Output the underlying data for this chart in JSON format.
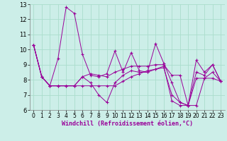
{
  "xlabel": "Windchill (Refroidissement éolien,°C)",
  "bg_color": "#cceee8",
  "line_color": "#990099",
  "grid_color": "#aaddcc",
  "xlim": [
    -0.5,
    23.5
  ],
  "ylim": [
    6,
    13
  ],
  "yticks": [
    6,
    7,
    8,
    9,
    10,
    11,
    12,
    13
  ],
  "xticks": [
    0,
    1,
    2,
    3,
    4,
    5,
    6,
    7,
    8,
    9,
    10,
    11,
    12,
    13,
    14,
    15,
    16,
    17,
    18,
    19,
    20,
    21,
    22,
    23
  ],
  "series": [
    [
      10.3,
      8.2,
      7.6,
      9.4,
      12.8,
      12.4,
      9.7,
      8.3,
      8.2,
      8.4,
      9.9,
      8.5,
      9.8,
      8.6,
      8.5,
      10.4,
      9.1,
      7.8,
      6.5,
      6.3,
      9.3,
      8.5,
      9.0,
      7.9
    ],
    [
      10.3,
      8.2,
      7.6,
      7.6,
      7.6,
      7.6,
      7.6,
      7.6,
      7.6,
      7.6,
      7.6,
      7.9,
      8.2,
      8.4,
      8.6,
      8.7,
      8.8,
      7.0,
      6.5,
      6.3,
      8.1,
      8.1,
      8.1,
      7.9
    ],
    [
      10.3,
      8.2,
      7.6,
      7.6,
      7.6,
      7.6,
      8.2,
      8.4,
      8.3,
      8.2,
      8.5,
      8.7,
      8.9,
      8.9,
      8.9,
      9.0,
      9.0,
      8.3,
      8.3,
      6.3,
      6.3,
      8.1,
      8.5,
      7.9
    ],
    [
      10.3,
      8.2,
      7.6,
      7.6,
      7.6,
      7.6,
      8.2,
      7.8,
      7.0,
      6.5,
      7.8,
      8.3,
      8.6,
      8.5,
      8.5,
      8.7,
      8.9,
      6.6,
      6.3,
      6.3,
      8.5,
      8.3,
      9.0,
      7.9
    ]
  ]
}
